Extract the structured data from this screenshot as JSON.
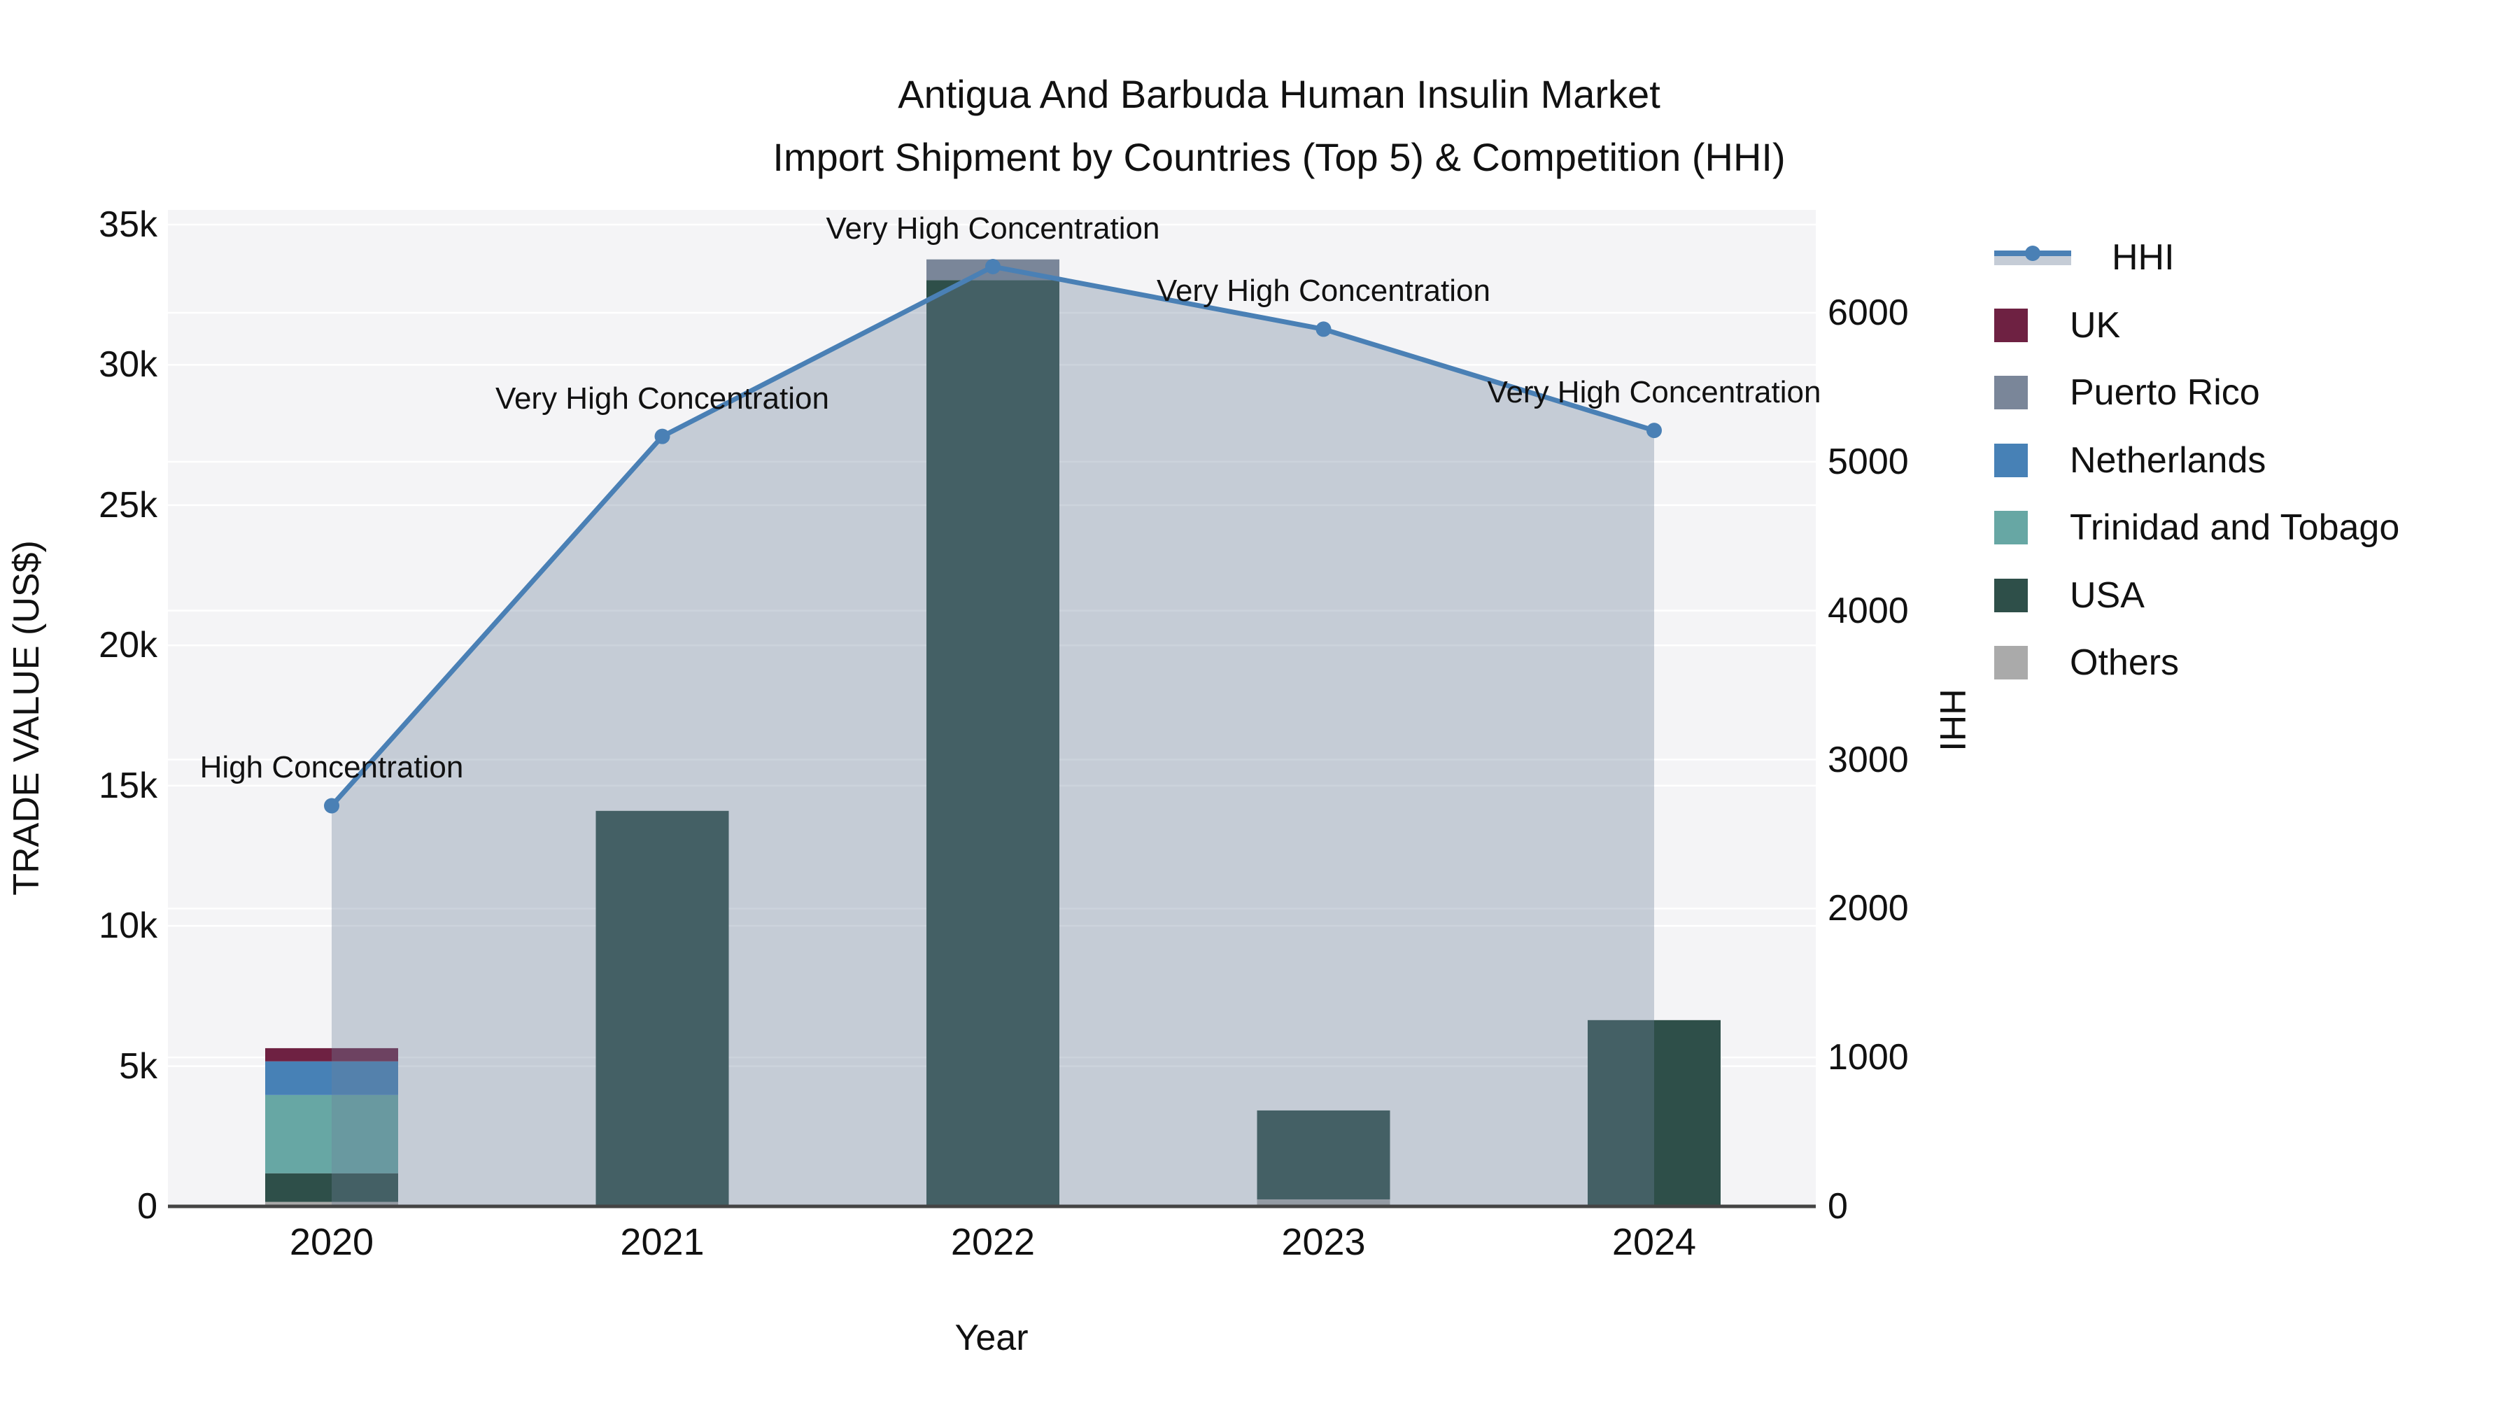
{
  "title": {
    "line1": "Antigua And Barbuda Human Insulin Market",
    "line2": "Import Shipment by Countries (Top 5) & Competition (HHI)"
  },
  "axes": {
    "x": {
      "title": "Year",
      "categories": [
        "2020",
        "2021",
        "2022",
        "2023",
        "2024"
      ]
    },
    "y_left": {
      "title": "TRADE VALUE (US$)",
      "ticks": [
        {
          "label": "35k",
          "value": 35000
        },
        {
          "label": "30k",
          "value": 30000
        },
        {
          "label": "25k",
          "value": 25000
        },
        {
          "label": "20k",
          "value": 20000
        },
        {
          "label": "15k",
          "value": 15000
        },
        {
          "label": "10k",
          "value": 10000
        },
        {
          "label": "5k",
          "value": 5000
        },
        {
          "label": "0",
          "value": 0
        }
      ],
      "range": [
        0,
        35000
      ]
    },
    "y_right": {
      "title": "HHI",
      "ticks": [
        {
          "label": "6000",
          "value": 6000
        },
        {
          "label": "5000",
          "value": 5000
        },
        {
          "label": "4000",
          "value": 4000
        },
        {
          "label": "3000",
          "value": 3000
        },
        {
          "label": "2000",
          "value": 2000
        },
        {
          "label": "1000",
          "value": 1000
        },
        {
          "label": "0",
          "value": 0
        }
      ],
      "range": [
        0,
        6690
      ]
    }
  },
  "chart_data": {
    "type": "bar+line",
    "categories": [
      "2020",
      "2021",
      "2022",
      "2023",
      "2024"
    ],
    "bar_series": [
      {
        "name": "UK",
        "color": "#6E2142",
        "values": [
          470,
          0,
          0,
          0,
          0
        ]
      },
      {
        "name": "Puerto Rico",
        "color": "#7A8699",
        "values": [
          0,
          0,
          740,
          0,
          0
        ]
      },
      {
        "name": "Netherlands",
        "color": "#4781B6",
        "values": [
          1200,
          0,
          0,
          0,
          0
        ]
      },
      {
        "name": "Trinidad and Tobago",
        "color": "#67A7A4",
        "values": [
          2790,
          0,
          0,
          0,
          0
        ]
      },
      {
        "name": "USA",
        "color": "#2E4F49",
        "values": [
          1020,
          14100,
          33020,
          3170,
          6640
        ]
      },
      {
        "name": "Others",
        "color": "#AAAAAA",
        "values": [
          160,
          0,
          0,
          250,
          0
        ]
      }
    ],
    "line_series": {
      "name": "HHI",
      "color": "#4A80B5",
      "values": [
        2690,
        5170,
        6310,
        5890,
        5210
      ]
    },
    "annotations": [
      {
        "year_index": 0,
        "text": "High Concentration"
      },
      {
        "year_index": 1,
        "text": "Very High Concentration"
      },
      {
        "year_index": 2,
        "text": "Very High Concentration"
      },
      {
        "year_index": 3,
        "text": "Very High Concentration"
      },
      {
        "year_index": 4,
        "text": "Very High Concentration"
      }
    ],
    "grid": "on",
    "legend_position": "right"
  },
  "legend": {
    "items": [
      {
        "label": "HHI",
        "type": "line"
      },
      {
        "label": "UK",
        "type": "swatch",
        "color": "#6E2142"
      },
      {
        "label": "Puerto Rico",
        "type": "swatch",
        "color": "#7A8699"
      },
      {
        "label": "Netherlands",
        "type": "swatch",
        "color": "#4781B6"
      },
      {
        "label": "Trinidad and Tobago",
        "type": "swatch",
        "color": "#67A7A4"
      },
      {
        "label": "USA",
        "type": "swatch",
        "color": "#2E4F49"
      },
      {
        "label": "Others",
        "type": "swatch",
        "color": "#AAAAAA"
      }
    ]
  },
  "colors": {
    "hhi_line": "#4A80B5",
    "hhi_area_fill": "rgba(110,130,155,0.35)",
    "hhi_area_legend": "#C5CCD6",
    "plot_background": "#F4F4F6",
    "gridline": "#FFFFFF",
    "axis_line": "#444444",
    "text": "#111111"
  }
}
